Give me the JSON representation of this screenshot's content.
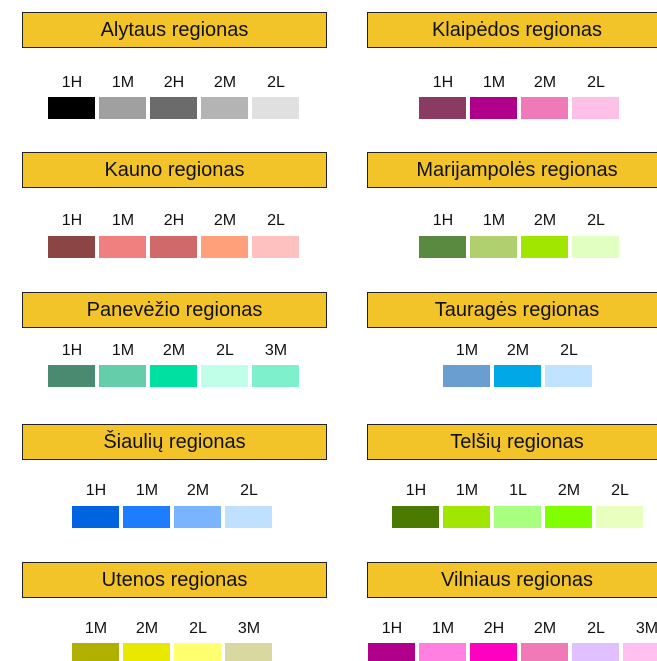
{
  "regions": [
    {
      "title": "Alytaus regionas",
      "items": [
        {
          "label": "1H",
          "color": "#000000"
        },
        {
          "label": "1M",
          "color": "#a0a0a0"
        },
        {
          "label": "2H",
          "color": "#6b6b6b"
        },
        {
          "label": "2M",
          "color": "#b4b4b4"
        },
        {
          "label": "2L",
          "color": "#e0e0e0"
        }
      ]
    },
    {
      "title": "Klaipėdos regionas",
      "items": [
        {
          "label": "1H",
          "color": "#8b3a62"
        },
        {
          "label": "1M",
          "color": "#b0008b"
        },
        {
          "label": "2M",
          "color": "#f07ab8"
        },
        {
          "label": "2L",
          "color": "#ffc0e8"
        }
      ]
    },
    {
      "title": "Kauno regionas",
      "items": [
        {
          "label": "1H",
          "color": "#8b4545"
        },
        {
          "label": "1M",
          "color": "#f08080"
        },
        {
          "label": "2H",
          "color": "#d06a6a"
        },
        {
          "label": "2M",
          "color": "#ffa07a"
        },
        {
          "label": "2L",
          "color": "#ffc0c0"
        }
      ]
    },
    {
      "title": "Marijampolės regionas",
      "items": [
        {
          "label": "1H",
          "color": "#5a8a40"
        },
        {
          "label": "1M",
          "color": "#b0d070"
        },
        {
          "label": "2M",
          "color": "#a0e600"
        },
        {
          "label": "2L",
          "color": "#e0ffc0"
        }
      ]
    },
    {
      "title": "Panevėžio regionas",
      "items": [
        {
          "label": "1H",
          "color": "#4a8a70"
        },
        {
          "label": "1M",
          "color": "#66cdaa"
        },
        {
          "label": "2M",
          "color": "#00e0a0"
        },
        {
          "label": "2L",
          "color": "#c0ffe8"
        },
        {
          "label": "3M",
          "color": "#7ff0cc"
        }
      ]
    },
    {
      "title": "Tauragės regionas",
      "items": [
        {
          "label": "1M",
          "color": "#6a9ed0"
        },
        {
          "label": "2M",
          "color": "#00a8e8"
        },
        {
          "label": "2L",
          "color": "#c0e4ff"
        }
      ]
    },
    {
      "title": "Šiaulių regionas",
      "items": [
        {
          "label": "1H",
          "color": "#0064e0"
        },
        {
          "label": "1M",
          "color": "#1e7cff"
        },
        {
          "label": "2M",
          "color": "#7ab4ff"
        },
        {
          "label": "2L",
          "color": "#c0e0ff"
        }
      ]
    },
    {
      "title": "Telšių regionas",
      "items": [
        {
          "label": "1H",
          "color": "#4a7a00"
        },
        {
          "label": "1M",
          "color": "#a0e600"
        },
        {
          "label": "1L",
          "color": "#a8ff80"
        },
        {
          "label": "2M",
          "color": "#80ff00"
        },
        {
          "label": "2L",
          "color": "#e8ffc0"
        }
      ]
    },
    {
      "title": "Utenos regionas",
      "items": [
        {
          "label": "1M",
          "color": "#b0b000"
        },
        {
          "label": "2M",
          "color": "#e8e800"
        },
        {
          "label": "2L",
          "color": "#ffff70"
        },
        {
          "label": "3M",
          "color": "#d8d8a0"
        }
      ]
    },
    {
      "title": "Vilniaus regionas",
      "items": [
        {
          "label": "1H",
          "color": "#b0008b"
        },
        {
          "label": "1M",
          "color": "#ff80e0"
        },
        {
          "label": "2H",
          "color": "#ff00c0"
        },
        {
          "label": "2M",
          "color": "#f07ab8"
        },
        {
          "label": "2L",
          "color": "#e0c0ff"
        },
        {
          "label": "3M",
          "color": "#ffc0f0"
        }
      ]
    }
  ]
}
